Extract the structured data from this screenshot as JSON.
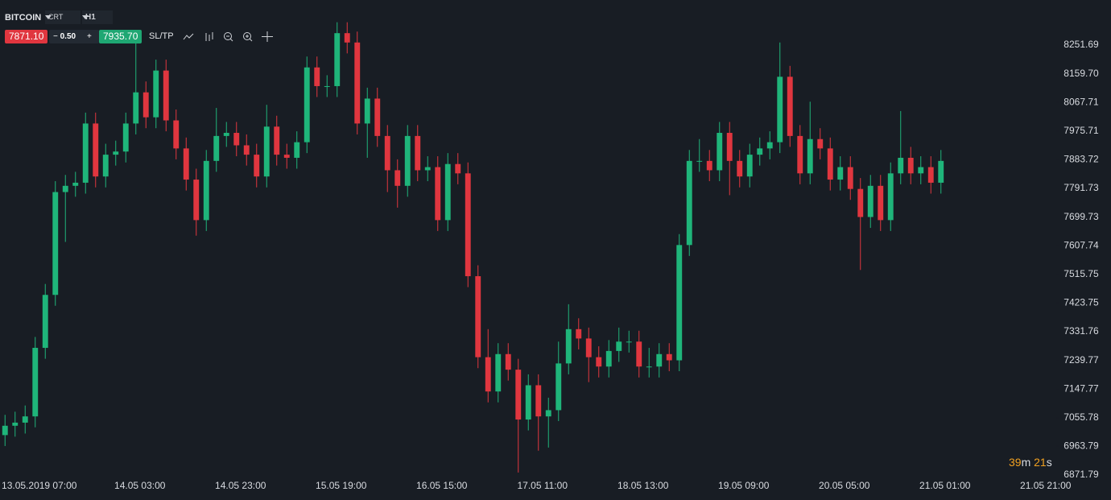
{
  "header": {
    "symbol": "BITCOIN",
    "chart_type": "CRT",
    "timeframe": "H1",
    "sell_price": "7871.10",
    "minus": "−",
    "spread": "0.50",
    "plus": "+",
    "buy_price": "7935.70",
    "sltp": "SL/TP"
  },
  "timer": [
    "39",
    "m",
    "21",
    "s"
  ],
  "chart_data": {
    "type": "candlestick",
    "colors": {
      "up": "#1fb57a",
      "down": "#e0363f"
    },
    "open": [
      7000,
      7030,
      7040,
      7060,
      7280,
      7450,
      7780,
      7800,
      7810,
      8000,
      7830,
      7900,
      7910,
      8000,
      8100,
      8020,
      8170,
      8010,
      7920,
      7820,
      7690,
      7880,
      7960,
      7970,
      7930,
      7900,
      7830,
      7990,
      7900,
      7890,
      7940,
      8180,
      8120,
      8120,
      8290,
      8260,
      8000,
      8080,
      7960,
      7850,
      7800,
      7960,
      7850,
      7860,
      7690,
      7870,
      7840,
      7510,
      7250,
      7140,
      7260,
      7210,
      7050,
      7160,
      7060,
      7080,
      7230,
      7340,
      7310,
      7250,
      7220,
      7270,
      7300,
      7300,
      7220,
      7220,
      7260,
      7240,
      7610,
      7880,
      7880,
      7850,
      7970,
      7880,
      7830,
      7900,
      7920,
      7940,
      8150,
      7960,
      7840,
      7950,
      7920,
      7820,
      7860,
      7790,
      7700,
      7800,
      7690,
      7840,
      7890,
      7840,
      7860,
      7810
    ],
    "high": [
      7065,
      7075,
      7095,
      7315,
      7485,
      7815,
      7835,
      7845,
      8035,
      8035,
      7935,
      7945,
      8035,
      8260,
      8135,
      8205,
      8205,
      8045,
      7955,
      7855,
      7915,
      8050,
      8005,
      8005,
      7965,
      7935,
      8060,
      8025,
      7935,
      7975,
      8215,
      8215,
      8155,
      8325,
      8325,
      8295,
      8115,
      8115,
      7995,
      7885,
      7995,
      7995,
      7895,
      7895,
      7905,
      7905,
      7875,
      7545,
      7340,
      7295,
      7295,
      7245,
      7195,
      7195,
      7120,
      7300,
      7420,
      7375,
      7345,
      7285,
      7305,
      7345,
      7335,
      7335,
      7280,
      7295,
      7295,
      7645,
      7915,
      7950,
      7915,
      8005,
      8005,
      7915,
      7935,
      7955,
      7975,
      8260,
      8185,
      7995,
      8070,
      7985,
      7955,
      7895,
      7895,
      7825,
      7835,
      7835,
      7875,
      8040,
      7925,
      7895,
      7895,
      7915
    ],
    "low": [
      6965,
      6995,
      7005,
      7025,
      7245,
      7415,
      7620,
      7765,
      7775,
      7795,
      7795,
      7865,
      7875,
      7965,
      7985,
      7985,
      7975,
      7885,
      7785,
      7640,
      7655,
      7845,
      7925,
      7895,
      7865,
      7795,
      7795,
      7865,
      7855,
      7855,
      7905,
      8085,
      8085,
      8085,
      8225,
      7965,
      7890,
      7925,
      7780,
      7730,
      7765,
      7815,
      7815,
      7655,
      7655,
      7805,
      7475,
      7215,
      7105,
      7105,
      7175,
      6880,
      7015,
      6950,
      6960,
      7045,
      7195,
      7275,
      7170,
      7185,
      7185,
      7235,
      7265,
      7185,
      7185,
      7185,
      7205,
      7205,
      7575,
      7845,
      7815,
      7815,
      7770,
      7795,
      7795,
      7865,
      7885,
      7905,
      7925,
      7805,
      7805,
      7885,
      7785,
      7785,
      7755,
      7530,
      7665,
      7655,
      7655,
      7805,
      7805,
      7805,
      7775,
      7775
    ],
    "close": [
      7030,
      7040,
      7060,
      7280,
      7450,
      7780,
      7800,
      7810,
      8000,
      7830,
      7900,
      7910,
      8000,
      8100,
      8020,
      8170,
      8010,
      7920,
      7820,
      7690,
      7880,
      7960,
      7970,
      7930,
      7900,
      7830,
      7990,
      7900,
      7890,
      7940,
      8180,
      8120,
      8120,
      8290,
      8260,
      8000,
      8080,
      7960,
      7850,
      7800,
      7960,
      7850,
      7860,
      7690,
      7870,
      7840,
      7510,
      7250,
      7140,
      7260,
      7210,
      7050,
      7160,
      7060,
      7080,
      7230,
      7340,
      7310,
      7250,
      7220,
      7270,
      7300,
      7300,
      7220,
      7220,
      7260,
      7240,
      7610,
      7880,
      7880,
      7850,
      7970,
      7880,
      7830,
      7900,
      7920,
      7940,
      8150,
      7960,
      7840,
      7950,
      7920,
      7820,
      7860,
      7790,
      7700,
      7800,
      7690,
      7840,
      7890,
      7840,
      7860,
      7810,
      7880
    ],
    "xlim": [
      -0.5,
      109.9
    ],
    "xticks": [
      {
        "value": 3.4,
        "label": "13.05.2019 07:00"
      },
      {
        "value": 13.4,
        "label": "14.05 03:00"
      },
      {
        "value": 23.4,
        "label": "14.05 23:00"
      },
      {
        "value": 33.4,
        "label": "15.05 19:00"
      },
      {
        "value": 43.4,
        "label": "16.05 15:00"
      },
      {
        "value": 53.4,
        "label": "17.05 11:00"
      },
      {
        "value": 63.4,
        "label": "18.05 13:00"
      },
      {
        "value": 73.4,
        "label": "19.05 09:00"
      },
      {
        "value": 83.4,
        "label": "20.05 05:00"
      },
      {
        "value": 93.4,
        "label": "21.05 01:00"
      },
      {
        "value": 103.4,
        "label": "21.05 21:00"
      }
    ],
    "ylim": [
      6791.7,
      8396.4
    ],
    "yticks": [
      8251.69,
      {
        "value": 8159.7,
        "label": "8159.70"
      },
      8067.71,
      7975.71,
      7883.72,
      7791.73,
      7699.73,
      7607.74,
      7515.75,
      7423.75,
      7331.76,
      7239.77,
      7147.77,
      7055.78,
      6963.79,
      6871.79
    ]
  }
}
